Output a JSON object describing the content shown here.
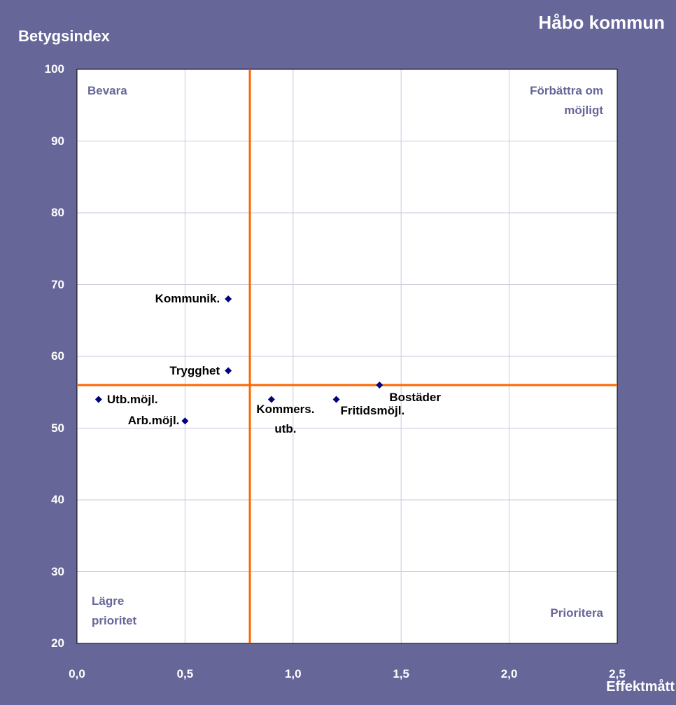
{
  "chart_data": {
    "type": "scatter",
    "title": "Håbo kommun",
    "y_label": "Betygsindex",
    "x_label": "Effektmått",
    "x": [
      0.7,
      0.7,
      0.1,
      0.5,
      0.9,
      1.2,
      1.4
    ],
    "values": [
      68,
      58,
      54,
      51,
      54,
      54,
      56
    ],
    "point_labels": [
      "Kommunik.",
      "Trygghet",
      "Utb.möjl.",
      "Arb.möjl.",
      "Kommers. utb.",
      "Fritidsmöjl.",
      "Bostäder"
    ],
    "color": "#000080",
    "xlim": [
      0,
      2.5
    ],
    "xticks": [
      {
        "value": 0,
        "label": "0,0"
      },
      {
        "value": 0.5,
        "label": "0,5"
      },
      {
        "value": 1,
        "label": "1,0"
      },
      {
        "value": 1.5,
        "label": "1,5"
      },
      {
        "value": 2,
        "label": "2,0"
      },
      {
        "value": 2.5,
        "label": "2,5"
      }
    ],
    "ylim": [
      20,
      100
    ],
    "yticks": [
      20,
      30,
      40,
      50,
      60,
      70,
      80,
      90,
      100
    ],
    "grid": true,
    "reference_lines": {
      "x": 0.8,
      "y": 56,
      "color": "#ff6600"
    },
    "quadrant_labels": {
      "top_left": "Bevara",
      "top_right": "Förbättra om möjligt",
      "bottom_left": "Lägre prioritet",
      "bottom_right": "Prioritera"
    }
  }
}
